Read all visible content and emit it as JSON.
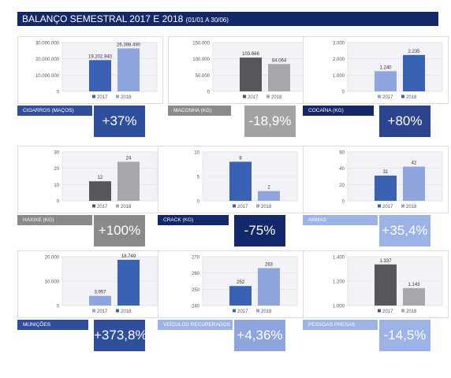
{
  "title": {
    "main": "BALANÇO SEMESTRAL 2017 E 2018 ",
    "sub": "(01/01 A 30/06)"
  },
  "colors": {
    "header": "#13286a",
    "c2017_blue": "#3a62b4",
    "c2018_blue": "#8ea6dd",
    "c2017_gray": "#55575c",
    "c2018_gray": "#a8a8ac",
    "navy": "#13286a",
    "royal": "#2f4f9e",
    "lightblue": "#9bb3e6",
    "gray": "#8a8a8c"
  },
  "legend": [
    "2017",
    "2018"
  ],
  "chart_data": [
    {
      "type": "bar",
      "title": "CIGARROS (MAÇOS)",
      "categories": [
        "2017",
        "2018"
      ],
      "values": [
        19202940,
        26398490
      ],
      "value_labels": [
        "19.202.940",
        "26.398.490"
      ],
      "ylim": [
        0,
        30000000
      ],
      "yticks": [
        "30.000.000",
        "20.000.000",
        "10.000.000",
        "0"
      ],
      "change": "+37%",
      "label_color": "#2f4f9e",
      "pct_color": "#2f4f9e",
      "bar_colors": [
        "#3a62b4",
        "#8ea6dd"
      ]
    },
    {
      "type": "bar",
      "title": "MACONHA (KG)",
      "categories": [
        "2017",
        "2018"
      ],
      "values": [
        103666,
        84064
      ],
      "value_labels": [
        "103.666",
        "84.064"
      ],
      "ylim": [
        0,
        150000
      ],
      "yticks": [
        "150.000",
        "100.000",
        "50.000",
        "0"
      ],
      "change": "-18,9%",
      "label_color": "#8a8a8c",
      "pct_color": "#a3a3a5",
      "bar_colors": [
        "#55575c",
        "#a8a8ac"
      ]
    },
    {
      "type": "bar",
      "title": "COCAÍNA (KG)",
      "categories": [
        "2017",
        "2018"
      ],
      "values": [
        1240,
        2235
      ],
      "value_labels": [
        "1.240",
        "2.235"
      ],
      "ylim": [
        0,
        3000
      ],
      "yticks": [
        "3.000",
        "2.000",
        "1.000",
        "0"
      ],
      "change": "+80%",
      "label_color": "#13286a",
      "pct_color": "#2b448f",
      "bar_colors": [
        "#8ea6dd",
        "#3a62b4"
      ]
    },
    {
      "type": "bar",
      "title": "HAXIXE (KG)",
      "categories": [
        "2017",
        "2018"
      ],
      "values": [
        12,
        24
      ],
      "value_labels": [
        "12",
        "24"
      ],
      "ylim": [
        0,
        30
      ],
      "yticks": [
        "30",
        "20",
        "10",
        "0"
      ],
      "change": "+100%",
      "label_color": "#8a8a8c",
      "pct_color": "#8a8a8c",
      "bar_colors": [
        "#55575c",
        "#a8a8ac"
      ]
    },
    {
      "type": "bar",
      "title": "CRACK (KG)",
      "categories": [
        "2017",
        "2018"
      ],
      "values": [
        8,
        2
      ],
      "value_labels": [
        "8",
        "2"
      ],
      "ylim": [
        0,
        10
      ],
      "yticks": [
        "10",
        "5",
        "0"
      ],
      "change": "-75%",
      "label_color": "#13286a",
      "pct_color": "#13286a",
      "bar_colors": [
        "#3a62b4",
        "#8ea6dd"
      ]
    },
    {
      "type": "bar",
      "title": "ARMAS",
      "categories": [
        "2017",
        "2018"
      ],
      "values": [
        31,
        42
      ],
      "value_labels": [
        "31",
        "42"
      ],
      "ylim": [
        0,
        60
      ],
      "yticks": [
        "60",
        "40",
        "20",
        "0"
      ],
      "change": "+35,4%",
      "label_color": "#9bb3e6",
      "pct_color": "#9bb3e6",
      "bar_colors": [
        "#3a62b4",
        "#8ea6dd"
      ]
    },
    {
      "type": "bar",
      "title": "MUNIÇÕES",
      "categories": [
        "2017",
        "2018"
      ],
      "values": [
        3957,
        18749
      ],
      "value_labels": [
        "3.957",
        "18.749"
      ],
      "ylim": [
        0,
        20000
      ],
      "yticks": [
        "20.000",
        "10.000",
        "0"
      ],
      "change": "+373,8%",
      "label_color": "#2f4f9e",
      "pct_color": "#2f4f9e",
      "bar_colors": [
        "#8ea6dd",
        "#3a62b4"
      ]
    },
    {
      "type": "bar",
      "title": "VEÍCULOS RECUPERADOS",
      "categories": [
        "2017",
        "2018"
      ],
      "values": [
        252,
        263
      ],
      "value_labels": [
        "252",
        "263"
      ],
      "ylim": [
        240,
        270
      ],
      "yticks": [
        "270",
        "260",
        "250",
        "240"
      ],
      "change": "+4,36%",
      "label_color": "#9bb3e6",
      "pct_color": "#8ea6dd",
      "bar_colors": [
        "#3a62b4",
        "#8ea6dd"
      ]
    },
    {
      "type": "bar",
      "title": "PESSOAS PRESAS",
      "categories": [
        "2017",
        "2018"
      ],
      "values": [
        1337,
        1143
      ],
      "value_labels": [
        "1.337",
        "1.143"
      ],
      "ylim": [
        1000,
        1400
      ],
      "yticks": [
        "1.400",
        "1.200",
        "1.000"
      ],
      "change": "-14,5%",
      "label_color": "#9bb3e6",
      "pct_color": "#9bb3e6",
      "bar_colors": [
        "#55575c",
        "#a8a8ac"
      ]
    }
  ]
}
